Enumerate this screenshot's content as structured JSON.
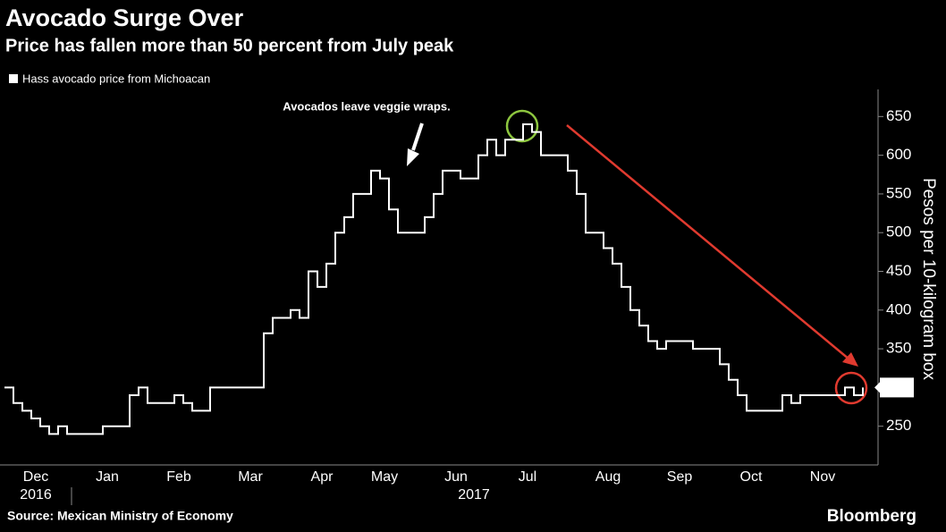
{
  "chart_data": {
    "type": "line",
    "title": "Avocado Surge Over",
    "subtitle": "Price has fallen more than 50 percent from July peak",
    "y_label": "Pesos per 10-kilogram box",
    "source": "Source: Mexican Ministry of Economy",
    "brand": "Bloomberg",
    "annotation": "Avocados leave veggie wraps.",
    "years": [
      "2016",
      "2017"
    ],
    "categories": [
      null,
      null,
      null,
      "Dec",
      null,
      null,
      null,
      null,
      null,
      null,
      null,
      "Jan",
      null,
      null,
      null,
      null,
      null,
      null,
      null,
      "Feb",
      null,
      null,
      null,
      null,
      null,
      null,
      null,
      "Mar",
      null,
      null,
      null,
      null,
      null,
      null,
      null,
      "Apr",
      null,
      null,
      null,
      null,
      null,
      null,
      "May",
      null,
      null,
      null,
      null,
      null,
      null,
      null,
      "Jun",
      null,
      null,
      null,
      null,
      null,
      null,
      null,
      "Jul",
      null,
      null,
      null,
      null,
      null,
      null,
      null,
      null,
      "Aug",
      null,
      null,
      null,
      null,
      null,
      null,
      null,
      "Sep",
      null,
      null,
      null,
      null,
      null,
      null,
      null,
      "Oct",
      null,
      null,
      null,
      null,
      null,
      null,
      null,
      "Nov",
      null,
      null,
      null,
      null,
      null
    ],
    "series": [
      {
        "name": "Hass avocado price from Michoacan",
        "color": "#ffffff",
        "values": [
          300,
          280,
          270,
          260,
          250,
          240,
          250,
          240,
          240,
          240,
          240,
          250,
          250,
          250,
          290,
          300,
          280,
          280,
          280,
          290,
          280,
          270,
          270,
          300,
          300,
          300,
          300,
          300,
          300,
          370,
          390,
          390,
          400,
          390,
          450,
          430,
          460,
          500,
          520,
          550,
          550,
          580,
          570,
          530,
          500,
          500,
          500,
          520,
          550,
          580,
          580,
          570,
          570,
          600,
          620,
          600,
          620,
          620,
          640,
          630,
          600,
          600,
          600,
          580,
          550,
          500,
          500,
          480,
          460,
          430,
          400,
          380,
          360,
          350,
          360,
          360,
          360,
          350,
          350,
          350,
          330,
          310,
          290,
          270,
          270,
          270,
          270,
          290,
          280,
          290,
          290,
          290,
          290,
          290,
          300,
          290,
          300
        ],
        "value_labels": {
          "96": "300"
        }
      }
    ],
    "ylim": [
      200,
      685
    ],
    "yticks": [
      250,
      300,
      350,
      400,
      450,
      500,
      550,
      600,
      650
    ]
  }
}
